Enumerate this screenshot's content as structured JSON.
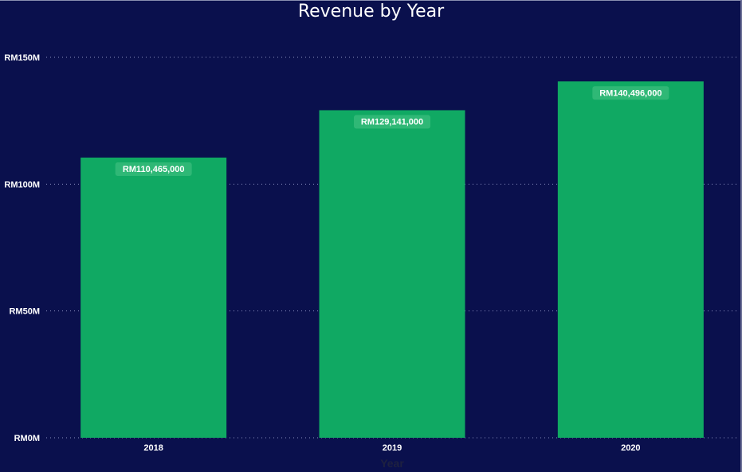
{
  "chart_data": {
    "type": "bar",
    "title": "Revenue by Year",
    "xlabel": "Year",
    "ylabel": "",
    "categories": [
      "2018",
      "2019",
      "2020"
    ],
    "values": [
      110465000,
      129141000,
      140496000
    ],
    "data_labels": [
      "RM110,465,000",
      "RM129,141,000",
      "RM140,496,000"
    ],
    "ylim": [
      0,
      150000000
    ],
    "yticks": [
      0,
      50000000,
      100000000,
      150000000
    ],
    "ytick_labels": [
      "RM0M",
      "RM50M",
      "RM100M",
      "RM150M"
    ],
    "grid": true,
    "colors": {
      "background": "#0a104d",
      "bar": "#10a963",
      "label_box": "#2fb876",
      "grid": "#8a8fc0",
      "text": "#ffffff"
    }
  }
}
